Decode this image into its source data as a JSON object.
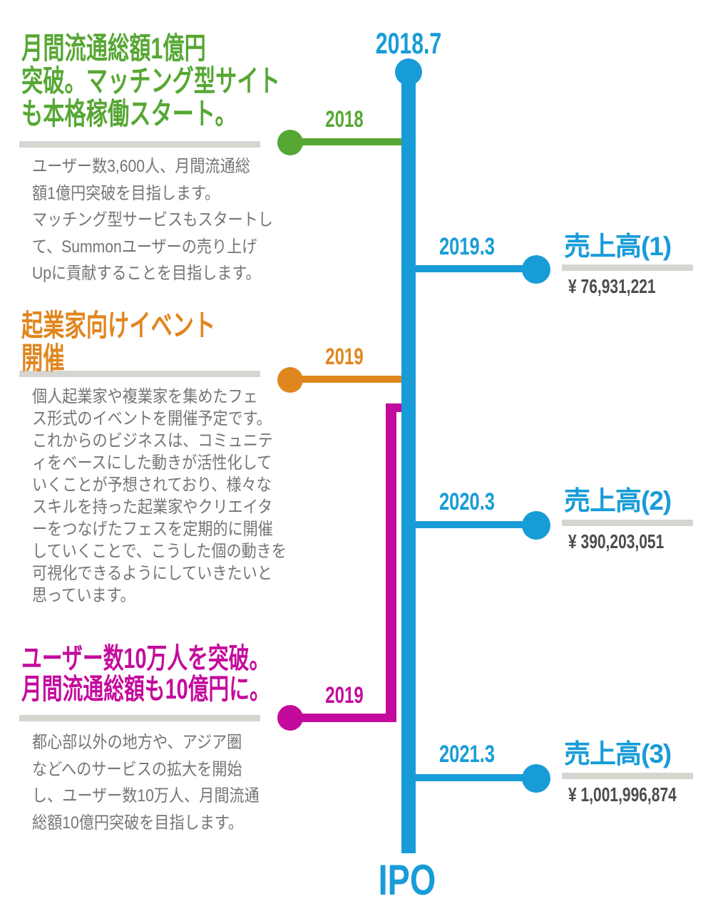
{
  "colors": {
    "blue": "#189CD8",
    "green": "#56A733",
    "orange": "#E0861F",
    "magenta": "#C40A9C",
    "divider": "#D7D5D0",
    "body-text": "#75757A",
    "amount-text": "#4D4D4D"
  },
  "timeline": {
    "start_label": "2018.7",
    "ipo_label": "IPO"
  },
  "milestones": [
    {
      "year": "2018",
      "accent": "green",
      "heading": "月間流通総額1億円\n突破。マッチング型サイト\nも本格稼働スタート。",
      "body": "ユーザー数3,600人、月間流通総\n額1億円突破を目指します。\nマッチング型サービスもスタートし\nて、Summonユーザーの売り上げ\nUpに貢献することを目指します。"
    },
    {
      "year": "2019",
      "accent": "orange",
      "heading": "起業家向けイベント\n開催",
      "body": "個人起業家や複業家を集めたフェ\nス形式のイベントを開催予定です。\nこれからのビジネスは、コミュニテ\nィをベースにした動きが活性化して\nいくことが予想されており、様々な\nスキルを持った起業家やクリエイタ\nーをつなげたフェスを定期的に開催\nしていくことで、こうした個の動きを\n可視化できるようにしていきたいと\n思っています。"
    },
    {
      "year": "2019",
      "accent": "magenta",
      "heading": "ユーザー数10万人を突破。\n月間流通総額も10億円に。",
      "body": "都心部以外の地方や、アジア圏\nなどへのサービスの拡大を開始\nし、ユーザー数10万人、月間流通\n総額10億円突破を目指します。"
    }
  ],
  "revenues": [
    {
      "date": "2019.3",
      "title": "売上高(1)",
      "amount": "¥ 76,931,221"
    },
    {
      "date": "2020.3",
      "title": "売上高(2)",
      "amount": "¥ 390,203,051"
    },
    {
      "date": "2021.3",
      "title": "売上高(3)",
      "amount": "¥ 1,001,996,874"
    }
  ]
}
